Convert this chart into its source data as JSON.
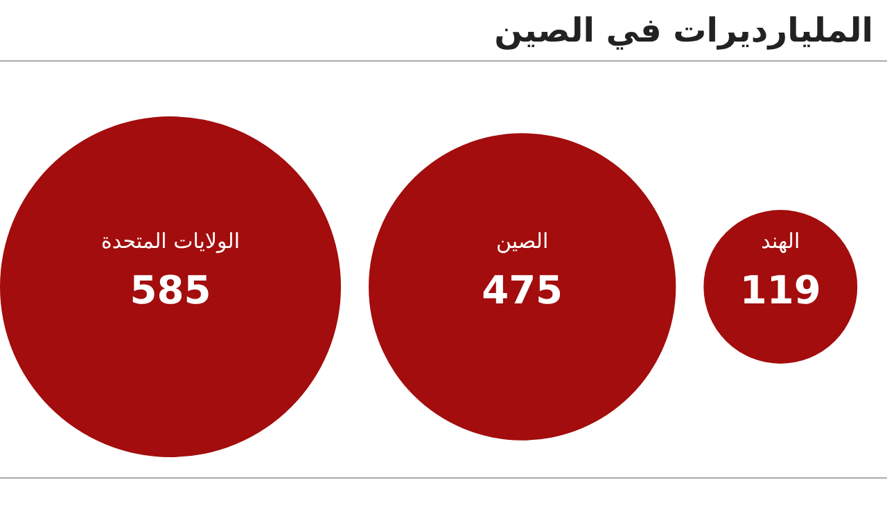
{
  "chart_data": {
    "type": "other",
    "title": "المليارديرات في الصين",
    "categories": [
      "الولايات المتحدة",
      "الصين",
      "الهند"
    ],
    "values": [
      585,
      475,
      119
    ],
    "color": "#a30d0d",
    "data_labels": true
  }
}
